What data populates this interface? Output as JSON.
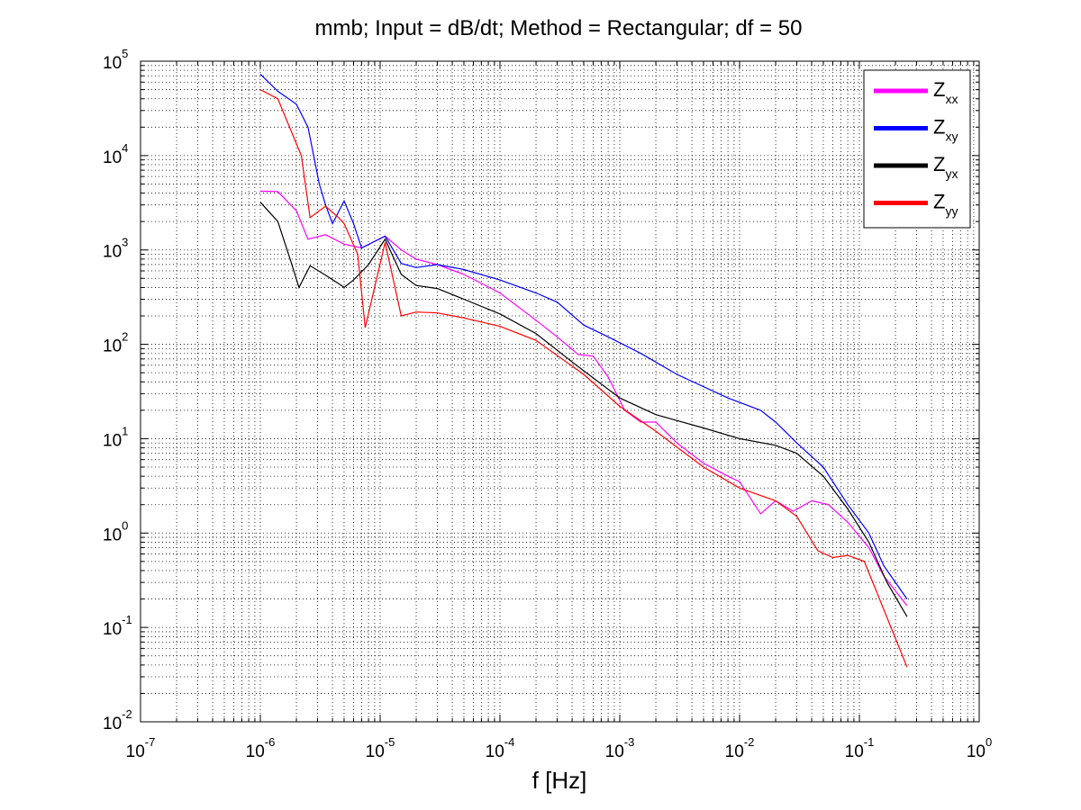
{
  "chart_data": {
    "type": "line",
    "title": "mmb; Input = dB/dt; Method = Rectangular; df = 50",
    "xlabel": "f [Hz]",
    "ylabel": "",
    "xscale": "log",
    "yscale": "log",
    "xlim": [
      1e-07,
      1
    ],
    "ylim": [
      0.01,
      100000
    ],
    "x_ticks": [
      {
        "base": "10",
        "exp": "-7"
      },
      {
        "base": "10",
        "exp": "-6"
      },
      {
        "base": "10",
        "exp": "-5"
      },
      {
        "base": "10",
        "exp": "-4"
      },
      {
        "base": "10",
        "exp": "-3"
      },
      {
        "base": "10",
        "exp": "-2"
      },
      {
        "base": "10",
        "exp": "-1"
      },
      {
        "base": "10",
        "exp": "0"
      }
    ],
    "y_ticks": [
      {
        "base": "10",
        "exp": "-2"
      },
      {
        "base": "10",
        "exp": "-1"
      },
      {
        "base": "10",
        "exp": "0"
      },
      {
        "base": "10",
        "exp": "1"
      },
      {
        "base": "10",
        "exp": "2"
      },
      {
        "base": "10",
        "exp": "3"
      },
      {
        "base": "10",
        "exp": "4"
      },
      {
        "base": "10",
        "exp": "5"
      }
    ],
    "grid": true,
    "minor_grid": true,
    "legend_placement": "top-right",
    "series": [
      {
        "name": "Z",
        "sub": "xx",
        "color": "#ff00ff",
        "points": [
          [
            1e-06,
            4200
          ],
          [
            1.4e-06,
            4150
          ],
          [
            2e-06,
            2600
          ],
          [
            2.5e-06,
            1300
          ],
          [
            3.5e-06,
            1450
          ],
          [
            5e-06,
            1150
          ],
          [
            7e-06,
            1050
          ],
          [
            1.1e-05,
            1400
          ],
          [
            1.5e-05,
            1000
          ],
          [
            2e-05,
            800
          ],
          [
            3e-05,
            700
          ],
          [
            5e-05,
            550
          ],
          [
            0.0001,
            350
          ],
          [
            0.0002,
            180
          ],
          [
            0.0003,
            120
          ],
          [
            0.00045,
            78
          ],
          [
            0.0006,
            75
          ],
          [
            0.0008,
            45
          ],
          [
            0.0011,
            20
          ],
          [
            0.0015,
            15
          ],
          [
            0.002,
            15
          ],
          [
            0.003,
            9
          ],
          [
            0.005,
            5.5
          ],
          [
            0.008,
            4
          ],
          [
            0.01,
            3.5
          ],
          [
            0.015,
            1.6
          ],
          [
            0.02,
            2.2
          ],
          [
            0.028,
            1.7
          ],
          [
            0.04,
            2.2
          ],
          [
            0.055,
            2.0
          ],
          [
            0.08,
            1.3
          ],
          [
            0.12,
            0.7
          ],
          [
            0.16,
            0.35
          ],
          [
            0.25,
            0.17
          ]
        ]
      },
      {
        "name": "Z",
        "sub": "xy",
        "color": "#0000ff",
        "points": [
          [
            1e-06,
            73000
          ],
          [
            1.4e-06,
            48000
          ],
          [
            2e-06,
            35000
          ],
          [
            2.5e-06,
            20000
          ],
          [
            3.1e-06,
            5000
          ],
          [
            3.5e-06,
            3000
          ],
          [
            4e-06,
            1900
          ],
          [
            5e-06,
            3300
          ],
          [
            6e-06,
            1900
          ],
          [
            7e-06,
            1050
          ],
          [
            1.1e-05,
            1400
          ],
          [
            1.5e-05,
            720
          ],
          [
            2e-05,
            650
          ],
          [
            3e-05,
            700
          ],
          [
            5e-05,
            620
          ],
          [
            0.0001,
            480
          ],
          [
            0.0002,
            350
          ],
          [
            0.0003,
            280
          ],
          [
            0.0005,
            160
          ],
          [
            0.0008,
            120
          ],
          [
            0.0015,
            80
          ],
          [
            0.003,
            48
          ],
          [
            0.008,
            27
          ],
          [
            0.015,
            20
          ],
          [
            0.02,
            15
          ],
          [
            0.03,
            9
          ],
          [
            0.05,
            5
          ],
          [
            0.08,
            2
          ],
          [
            0.12,
            1.0
          ],
          [
            0.16,
            0.45
          ],
          [
            0.25,
            0.2
          ]
        ]
      },
      {
        "name": "Z",
        "sub": "yx",
        "color": "#000000",
        "points": [
          [
            1e-06,
            3200
          ],
          [
            1.4e-06,
            2000
          ],
          [
            1.8e-06,
            750
          ],
          [
            2.1e-06,
            400
          ],
          [
            2.6e-06,
            680
          ],
          [
            3.5e-06,
            540
          ],
          [
            4.5e-06,
            440
          ],
          [
            5e-06,
            400
          ],
          [
            6e-06,
            480
          ],
          [
            8e-06,
            700
          ],
          [
            1.1e-05,
            1300
          ],
          [
            1.5e-05,
            550
          ],
          [
            2e-05,
            420
          ],
          [
            3e-05,
            390
          ],
          [
            5e-05,
            300
          ],
          [
            0.0001,
            210
          ],
          [
            0.0002,
            130
          ],
          [
            0.0004,
            65
          ],
          [
            0.001,
            27
          ],
          [
            0.002,
            18
          ],
          [
            0.005,
            13
          ],
          [
            0.01,
            10
          ],
          [
            0.02,
            8.5
          ],
          [
            0.03,
            7
          ],
          [
            0.05,
            4
          ],
          [
            0.08,
            1.8
          ],
          [
            0.12,
            0.8
          ],
          [
            0.17,
            0.3
          ],
          [
            0.25,
            0.13
          ]
        ]
      },
      {
        "name": "Z",
        "sub": "yy",
        "color": "#ff0000",
        "points": [
          [
            1e-06,
            50000
          ],
          [
            1.4e-06,
            40000
          ],
          [
            2.2e-06,
            10000
          ],
          [
            2.6e-06,
            2200
          ],
          [
            3.5e-06,
            2900
          ],
          [
            4.5e-06,
            2200
          ],
          [
            5e-06,
            1900
          ],
          [
            6.5e-06,
            900
          ],
          [
            7.5e-06,
            150
          ],
          [
            1.1e-05,
            1200
          ],
          [
            1.5e-05,
            200
          ],
          [
            2e-05,
            220
          ],
          [
            3e-05,
            215
          ],
          [
            5e-05,
            190
          ],
          [
            0.0001,
            155
          ],
          [
            0.0002,
            110
          ],
          [
            0.0005,
            48
          ],
          [
            0.001,
            22
          ],
          [
            0.002,
            12
          ],
          [
            0.005,
            5
          ],
          [
            0.01,
            3
          ],
          [
            0.02,
            2.2
          ],
          [
            0.03,
            1.5
          ],
          [
            0.045,
            0.65
          ],
          [
            0.06,
            0.55
          ],
          [
            0.08,
            0.58
          ],
          [
            0.11,
            0.5
          ],
          [
            0.25,
            0.038
          ]
        ]
      }
    ]
  }
}
